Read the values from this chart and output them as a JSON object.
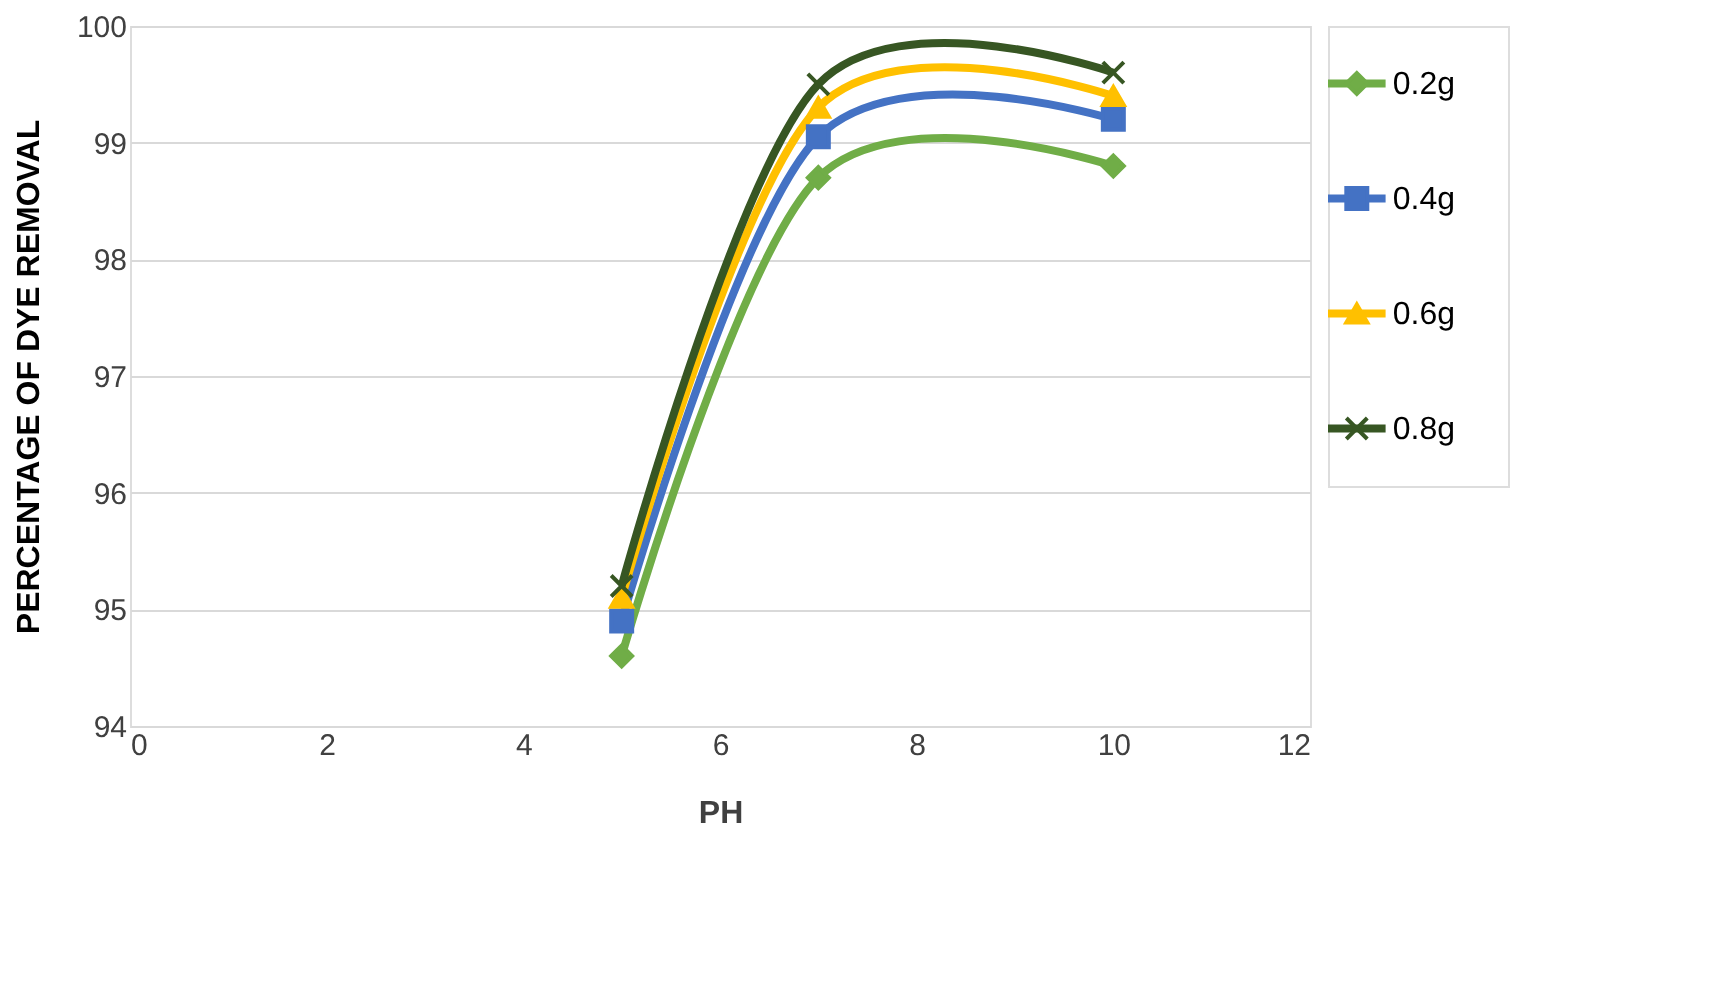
{
  "chart_data": {
    "type": "line",
    "xlabel": "PH",
    "ylabel": "PERCENTAGE OF DYE REMOVAL",
    "x": [
      5,
      7,
      10
    ],
    "series": [
      {
        "name": "0.2g",
        "color": "#70ad47",
        "marker": "diamond",
        "values": [
          94.6,
          98.7,
          98.8
        ]
      },
      {
        "name": "0.4g",
        "color": "#4472c4",
        "marker": "square",
        "values": [
          94.9,
          99.05,
          99.2
        ]
      },
      {
        "name": "0.6g",
        "color": "#ffc000",
        "marker": "triangle",
        "values": [
          95.1,
          99.3,
          99.4
        ]
      },
      {
        "name": "0.8g",
        "color": "#375623",
        "marker": "cross",
        "values": [
          95.2,
          99.5,
          99.6
        ]
      }
    ],
    "xlim": [
      0,
      12
    ],
    "xticks": [
      0,
      2,
      4,
      6,
      8,
      10,
      12
    ],
    "ylim": [
      94,
      100
    ],
    "yticks": [
      94,
      95,
      96,
      97,
      98,
      99,
      100
    ],
    "grid": "y",
    "legend": "right",
    "line_style": "solid"
  }
}
